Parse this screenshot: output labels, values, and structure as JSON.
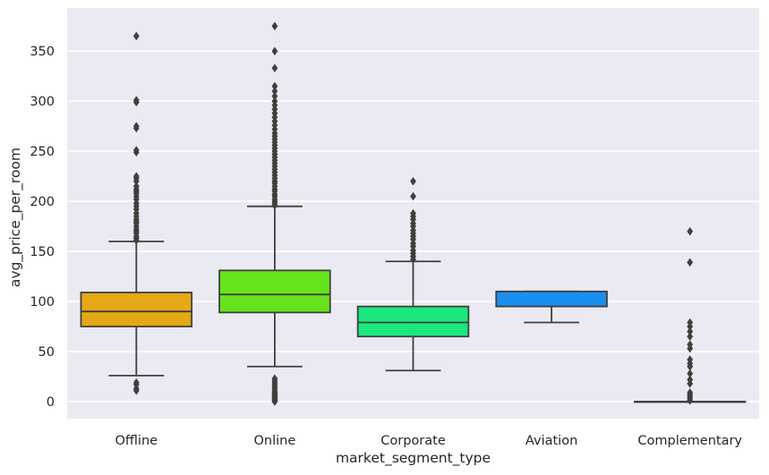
{
  "chart_data": {
    "type": "boxplot",
    "title": "",
    "xlabel": "market_segment_type",
    "ylabel": "avg_price_per_room",
    "ylim": [
      -17,
      393
    ],
    "yticks": [
      0,
      50,
      100,
      150,
      200,
      250,
      300,
      350
    ],
    "grid": true,
    "categories": [
      "Offline",
      "Online",
      "Corporate",
      "Aviation",
      "Complementary"
    ],
    "boxes": [
      {
        "name": "Offline",
        "color": "#e6a817",
        "whisker_low": 26,
        "q1": 75,
        "median": 90,
        "q3": 109,
        "whisker_high": 160,
        "outliers": [
          11,
          13,
          17,
          19,
          161,
          163,
          165,
          168,
          170,
          172,
          175,
          178,
          180,
          182,
          185,
          188,
          192,
          195,
          198,
          202,
          205,
          208,
          210,
          212,
          215,
          220,
          223,
          225,
          249,
          251,
          273,
          275,
          299,
          301,
          365
        ]
      },
      {
        "name": "Online",
        "color": "#66e31c",
        "whisker_low": 35,
        "q1": 89,
        "median": 107,
        "q3": 131,
        "whisker_high": 195,
        "outliers": [
          0,
          1,
          2,
          3,
          4,
          5,
          6,
          7,
          8,
          9,
          10,
          12,
          14,
          15,
          17,
          19,
          21,
          23,
          196,
          198,
          200,
          202,
          205,
          207,
          210,
          212,
          215,
          218,
          220,
          223,
          226,
          229,
          232,
          235,
          238,
          241,
          244,
          247,
          250,
          253,
          256,
          259,
          262,
          265,
          268,
          272,
          276,
          280,
          284,
          288,
          292,
          296,
          300,
          305,
          310,
          315,
          333,
          350,
          375
        ]
      },
      {
        "name": "Corporate",
        "color": "#1ae87e",
        "whisker_low": 31,
        "q1": 65,
        "median": 79,
        "q3": 95,
        "whisker_high": 140,
        "outliers": [
          142,
          145,
          148,
          151,
          155,
          158,
          162,
          165,
          168,
          171,
          175,
          178,
          182,
          185,
          188,
          205,
          220
        ]
      },
      {
        "name": "Aviation",
        "color": "#1a8ff0",
        "whisker_low": 79,
        "q1": 95,
        "median": 95,
        "q3": 110,
        "whisker_high": 110,
        "outliers": []
      },
      {
        "name": "Complementary",
        "color": "#1a8ff0",
        "whisker_low": 0,
        "q1": 0,
        "median": 0,
        "q3": 0,
        "whisker_high": 0,
        "outliers": [
          1,
          3,
          5,
          7,
          9,
          18,
          22,
          28,
          35,
          38,
          42,
          53,
          57,
          65,
          70,
          75,
          79,
          139,
          170
        ]
      }
    ]
  }
}
